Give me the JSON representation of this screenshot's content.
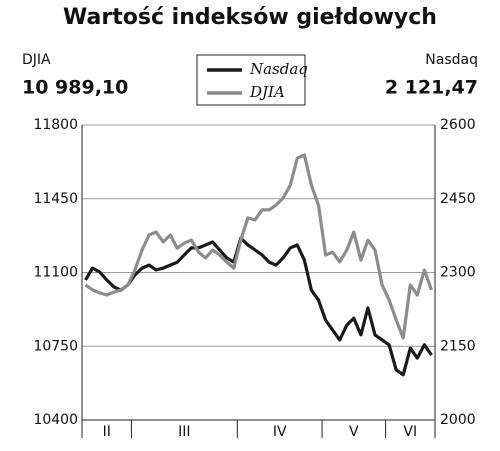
{
  "chart_data": {
    "type": "line",
    "title": "Wartość indeksów giełdowych",
    "left_header": {
      "name": "DJIA",
      "value": "10 989,10"
    },
    "right_header": {
      "name": "Nasdaq",
      "value": "2 121,47"
    },
    "categories": [
      "II",
      "II",
      "II",
      "II",
      "II",
      "II",
      "II",
      "III",
      "III",
      "III",
      "III",
      "III",
      "III",
      "III",
      "III",
      "III",
      "III",
      "III",
      "III",
      "III",
      "III",
      "III",
      "IV",
      "IV",
      "IV",
      "IV",
      "IV",
      "IV",
      "IV",
      "IV",
      "IV",
      "IV",
      "IV",
      "IV",
      "V",
      "V",
      "V",
      "V",
      "V",
      "V",
      "V",
      "V",
      "V",
      "VI",
      "VI",
      "VI",
      "VI",
      "VI",
      "VI",
      "VI"
    ],
    "series": [
      {
        "name": "Nasdaq",
        "color": "#1a1a1a",
        "axis": "y2",
        "values": [
          2285,
          2309,
          2301,
          2285,
          2271,
          2264,
          2275,
          2295,
          2309,
          2315,
          2305,
          2309,
          2315,
          2321,
          2336,
          2350,
          2350,
          2356,
          2362,
          2346,
          2330,
          2321,
          2370,
          2356,
          2346,
          2336,
          2321,
          2315,
          2330,
          2350,
          2356,
          2325,
          2264,
          2244,
          2203,
          2183,
          2163,
          2193,
          2207,
          2173,
          2228,
          2173,
          2163,
          2153,
          2102,
          2092,
          2146,
          2126,
          2153,
          2132
        ]
      },
      {
        "name": "DJIA",
        "color": "#8c8c8c",
        "values": [
          11041,
          11017,
          11003,
          10993,
          11007,
          11017,
          11041,
          11112,
          11207,
          11278,
          11292,
          11245,
          11278,
          11216,
          11240,
          11254,
          11197,
          11169,
          11207,
          11183,
          11150,
          11121,
          11254,
          11359,
          11349,
          11397,
          11397,
          11420,
          11454,
          11515,
          11643,
          11658,
          11515,
          11420,
          11183,
          11197,
          11150,
          11207,
          11292,
          11159,
          11254,
          11207,
          11041,
          10970,
          10875,
          10789,
          11041,
          10993,
          11112,
          11017
        ]
      }
    ],
    "ylim": [
      10400,
      11800
    ],
    "yticks": [
      10400,
      10750,
      11100,
      11450,
      11800
    ],
    "y2lim": [
      2000,
      2600
    ],
    "y2ticks": [
      2000,
      2150,
      2300,
      2450,
      2600
    ],
    "grid": true
  }
}
